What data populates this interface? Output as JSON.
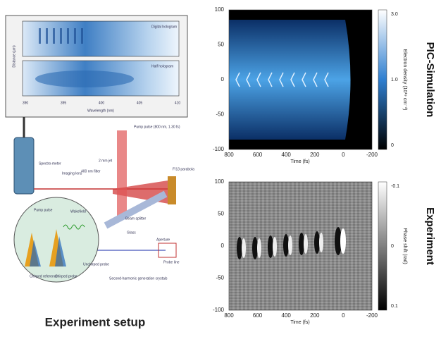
{
  "setup": {
    "title": "Experiment setup",
    "hologram": {
      "top_label": "Digital hologram",
      "bottom_label": "Half hologram",
      "y_label": "Distance (µm)",
      "x_label": "Wavelength (nm)",
      "xticks": [
        "390",
        "395",
        "400",
        "405",
        "410"
      ]
    },
    "labels": [
      "Spectro-meter",
      "Imaging lens",
      "400 nm filter",
      "Pump pulse (800 nm, 1.30 fs)",
      "F/13 parabola",
      "2 mm jet",
      "Beam splitter",
      "Glass",
      "Aperture",
      "Probe line",
      "Unchirped probe",
      "Second-harmonic generation crystals",
      "Pump pulse",
      "Wakefield",
      "Chirped reference",
      "Chirped probe"
    ]
  },
  "panels": [
    {
      "side_title": "PIC-Simulation",
      "x_label": "Time (fs)",
      "xticks": [
        "800",
        "600",
        "400",
        "200",
        "0",
        "-200"
      ],
      "yticks": [
        "100",
        "50",
        "0",
        "-50",
        "-100"
      ],
      "colorbar_label": "Electron density (10¹⁹ cm⁻³)",
      "colorbar_ticks": [
        "3.0",
        "1.0",
        "0"
      ]
    },
    {
      "side_title": "Experiment",
      "x_label": "Time (fs)",
      "xticks": [
        "800",
        "600",
        "400",
        "200",
        "0",
        "-200"
      ],
      "yticks": [
        "100",
        "50",
        "0",
        "-50",
        "-100"
      ],
      "colorbar_label": "Phase shift (rad)",
      "colorbar_ticks": [
        "-0.1",
        "0",
        "0.1"
      ]
    }
  ]
}
